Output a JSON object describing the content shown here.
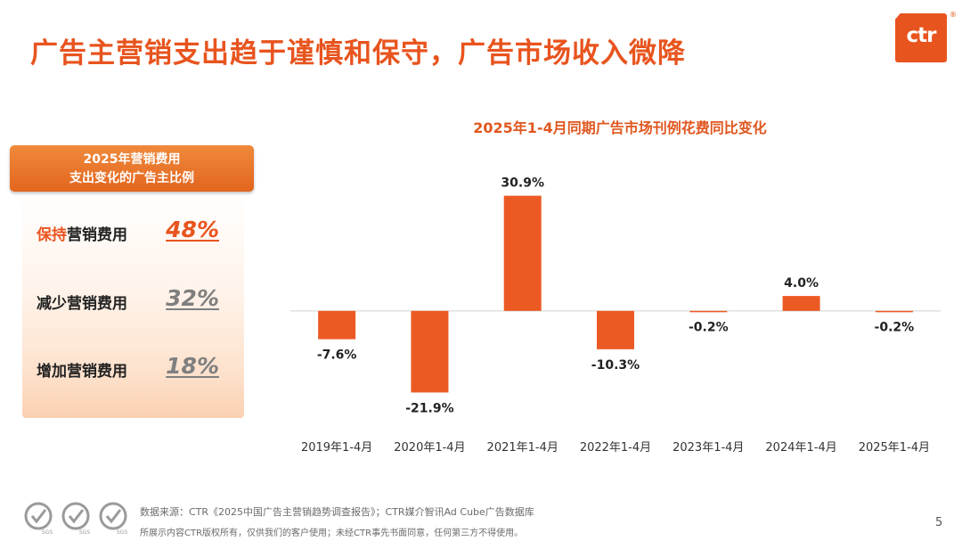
{
  "header": {
    "title": "广告主营销支出趋于谨慎和保守，广告市场收入微降",
    "logo_text": "ctr",
    "logo_mark": "®"
  },
  "panel": {
    "title_line1": "2025年营销费用",
    "title_line2": "支出变化的广告主比例",
    "rows": [
      {
        "label_highlight": "保持",
        "label_rest": "营销费用",
        "value": "48%",
        "value_color": "#e8541e"
      },
      {
        "label_highlight": "",
        "label_rest": "减少营销费用",
        "value": "32%",
        "value_color": "#7f7f7f"
      },
      {
        "label_highlight": "",
        "label_rest": "增加营销费用",
        "value": "18%",
        "value_color": "#7f7f7f"
      }
    ]
  },
  "chart_data": {
    "type": "bar",
    "title": "2025年1-4月同期广告市场刊例花费同比变化",
    "categories": [
      "2019年1-4月",
      "2020年1-4月",
      "2021年1-4月",
      "2022年1-4月",
      "2023年1-4月",
      "2024年1-4月",
      "2025年1-4月"
    ],
    "values": [
      -7.6,
      -21.9,
      30.9,
      -10.3,
      -0.2,
      4.0,
      -0.2
    ],
    "value_labels": [
      "-7.6%",
      "-21.9%",
      "30.9%",
      "-10.3%",
      "-0.2%",
      "4.0%",
      "-0.2%"
    ],
    "ylim": [
      -23,
      32
    ],
    "bar_color": "#ec5a24",
    "grid": false,
    "xlabel": "",
    "ylabel": ""
  },
  "footer": {
    "source": "数据来源：CTR《2025中国广告主营销趋势调查报告》；CTR媒介智讯Ad Cube广告数据库",
    "copyright": "所展示内容CTR版权所有，仅供我们的客户使用；未经CTR事先书面同意，任何第三方不得使用。",
    "page_number": "5",
    "badge_text": "SGS"
  }
}
